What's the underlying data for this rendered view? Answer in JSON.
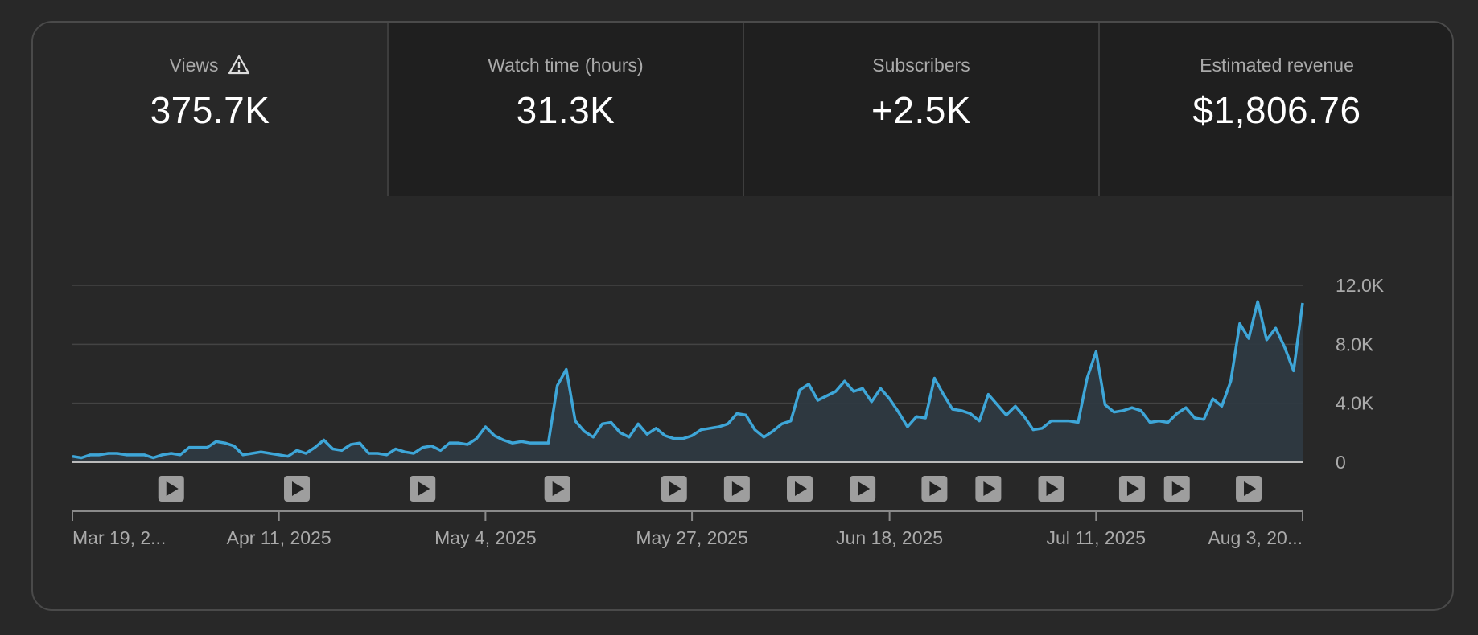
{
  "metrics": [
    {
      "label": "Views",
      "value": "375.7K",
      "icon": "warning-icon",
      "active": true
    },
    {
      "label": "Watch time (hours)",
      "value": "31.3K",
      "active": false
    },
    {
      "label": "Subscribers",
      "value": "+2.5K",
      "active": false
    },
    {
      "label": "Estimated revenue",
      "value": "$1,806.76",
      "active": false
    }
  ],
  "colors": {
    "line": "#3ea6d8",
    "fill": "#2f3a42",
    "grid": "#444444",
    "background": "#282828",
    "tab_inactive": "#1f1f1f",
    "marker": "#9e9e9e"
  },
  "chart_data": {
    "type": "area",
    "title": "",
    "xlabel": "",
    "ylabel": "",
    "ylim": [
      0,
      12000
    ],
    "y_ticks": [
      "0",
      "4.0K",
      "8.0K",
      "12.0K"
    ],
    "y_tick_values": [
      0,
      4000,
      8000,
      12000
    ],
    "x_tick_labels": [
      "Mar 19, 2...",
      "Apr 11, 2025",
      "May 4, 2025",
      "May 27, 2025",
      "Jun 18, 2025",
      "Jul 11, 2025",
      "Aug 3, 20..."
    ],
    "x_tick_day_index": [
      0,
      23,
      46,
      69,
      91,
      114,
      137
    ],
    "grid": true,
    "axis_side": "right",
    "series": [
      {
        "values": [
          400,
          300,
          500,
          500,
          600,
          600,
          500,
          500,
          500,
          300,
          500,
          600,
          500,
          1000,
          1000,
          1000,
          1400,
          1300,
          1100,
          500,
          600,
          700,
          600,
          500,
          400,
          800,
          600,
          1000,
          1500,
          900,
          800,
          1200,
          1300,
          600,
          600,
          500,
          900,
          700,
          600,
          1000,
          1100,
          800,
          1300,
          1300,
          1200,
          1600,
          2400,
          1800,
          1500,
          1300,
          1400,
          1300,
          1300,
          1300,
          5200,
          6300,
          2800,
          2100,
          1700,
          2600,
          2700,
          2000,
          1700,
          2600,
          1900,
          2300,
          1800,
          1600,
          1600,
          1800,
          2200,
          2300,
          2400,
          2600,
          3300,
          3200,
          2200,
          1700,
          2100,
          2600,
          2800,
          4900,
          5300,
          4200,
          4500,
          4800,
          5500,
          4800,
          5000,
          4100,
          5000,
          4300,
          3400,
          2400,
          3100,
          3000,
          5700,
          4600,
          3600,
          3500,
          3300,
          2800,
          4600,
          3900,
          3200,
          3800,
          3100,
          2200,
          2300,
          2800,
          2800,
          2800,
          2700,
          5700,
          7500,
          3900,
          3400,
          3500,
          3700,
          3500,
          2700,
          2800,
          2700,
          3300,
          3700,
          3000,
          2900,
          4300,
          3800,
          5500,
          9400,
          8400,
          10900,
          8300,
          9100,
          7800,
          6200,
          10800
        ]
      }
    ],
    "video_markers_day_index": [
      11,
      25,
      39,
      54,
      67,
      74,
      81,
      88,
      96,
      102,
      109,
      118,
      123,
      131
    ]
  }
}
